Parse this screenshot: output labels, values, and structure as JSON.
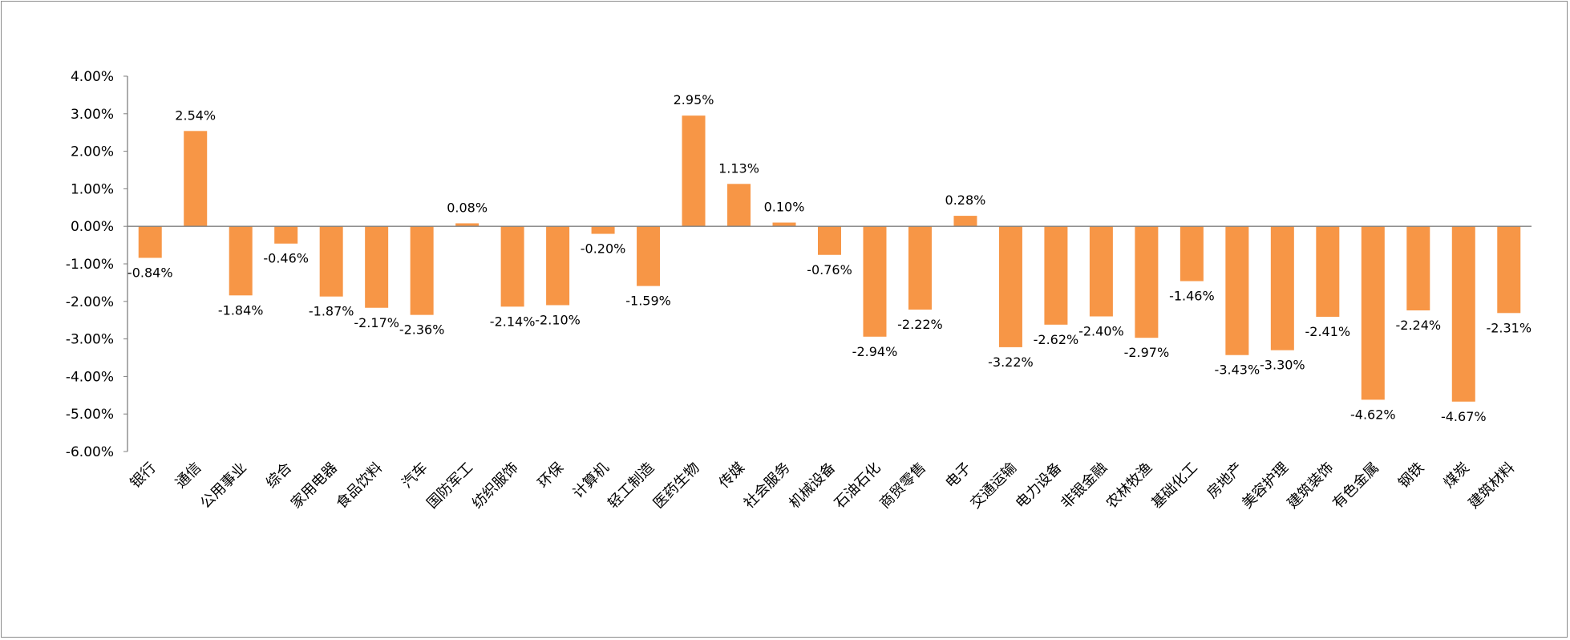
{
  "chart_data": {
    "type": "bar",
    "title": "",
    "xlabel": "",
    "ylabel": "",
    "ylim": [
      -6,
      4
    ],
    "y_ticks": [
      4,
      3,
      2,
      1,
      0,
      -1,
      -2,
      -3,
      -4,
      -5,
      -6
    ],
    "y_tick_labels": [
      "4.00%",
      "3.00%",
      "2.00%",
      "1.00%",
      "0.00%",
      "-1.00%",
      "-2.00%",
      "-3.00%",
      "-4.00%",
      "-5.00%",
      "-6.00%"
    ],
    "grid": false,
    "legend": "none",
    "bar_color": "#F79646",
    "axis_color": "#808080",
    "categories": [
      "银行",
      "通信",
      "公用事业",
      "综合",
      "家用电器",
      "食品饮料",
      "汽车",
      "国防军工",
      "纺织服饰",
      "环保",
      "计算机",
      "轻工制造",
      "医药生物",
      "传媒",
      "社会服务",
      "机械设备",
      "石油石化",
      "商贸零售",
      "电子",
      "交通运输",
      "电力设备",
      "非银金融",
      "农林牧渔",
      "基础化工",
      "房地产",
      "美容护理",
      "建筑装饰",
      "有色金属",
      "钢铁",
      "煤炭",
      "建筑材料"
    ],
    "values": [
      -0.84,
      2.54,
      -1.84,
      -0.46,
      -1.87,
      -2.17,
      -2.36,
      0.08,
      -2.14,
      -2.1,
      -0.2,
      -1.59,
      2.95,
      1.13,
      0.1,
      -0.76,
      -2.94,
      -2.22,
      0.28,
      -3.22,
      -2.62,
      -2.4,
      -2.97,
      -1.46,
      -3.43,
      -3.3,
      -2.41,
      -4.62,
      -2.24,
      -4.67,
      -2.31
    ],
    "data_labels": [
      "-0.84%",
      "2.54%",
      "-1.84%",
      "-0.46%",
      "-1.87%",
      "-2.17%",
      "-2.36%",
      "0.08%",
      "-2.14%",
      "-2.10%",
      "-0.20%",
      "-1.59%",
      "2.95%",
      "1.13%",
      "0.10%",
      "-0.76%",
      "-2.94%",
      "-2.22%",
      "0.28%",
      "-3.22%",
      "-2.62%",
      "-2.40%",
      "-2.97%",
      "-1.46%",
      "-3.43%",
      "-3.30%",
      "-2.41%",
      "-4.62%",
      "-2.24%",
      "-4.67%",
      "-2.31%"
    ]
  }
}
